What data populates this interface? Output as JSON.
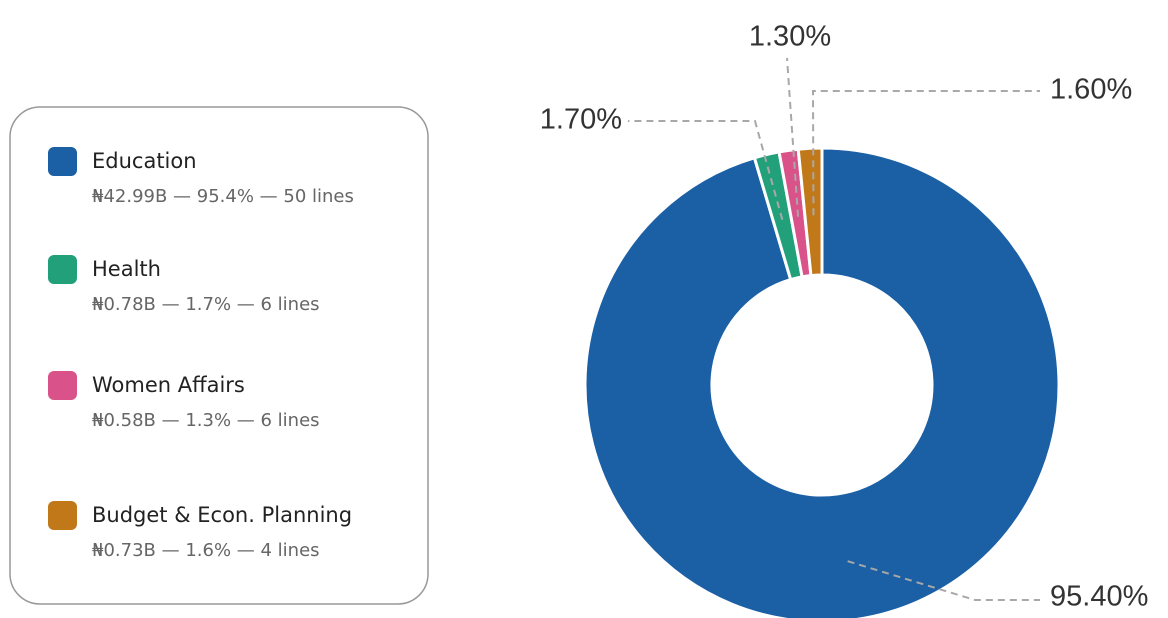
{
  "chart_data": {
    "type": "pie",
    "categories": [
      "Education",
      "Health",
      "Women Affairs",
      "Budget & Econ. Planning"
    ],
    "values": [
      95.4,
      1.7,
      1.3,
      1.6
    ],
    "value_labels": [
      "95.40%",
      "1.70%",
      "1.30%",
      "1.60%"
    ],
    "colors": [
      "#1b5fa5",
      "#22a07a",
      "#d9538a",
      "#c07818"
    ],
    "legend_details": [
      "₦42.99B — 95.4% — 50 lines",
      "₦0.78B — 1.7% — 6 lines",
      "₦0.58B — 1.3% — 6 lines",
      "₦0.73B — 1.6% — 4 lines"
    ]
  }
}
